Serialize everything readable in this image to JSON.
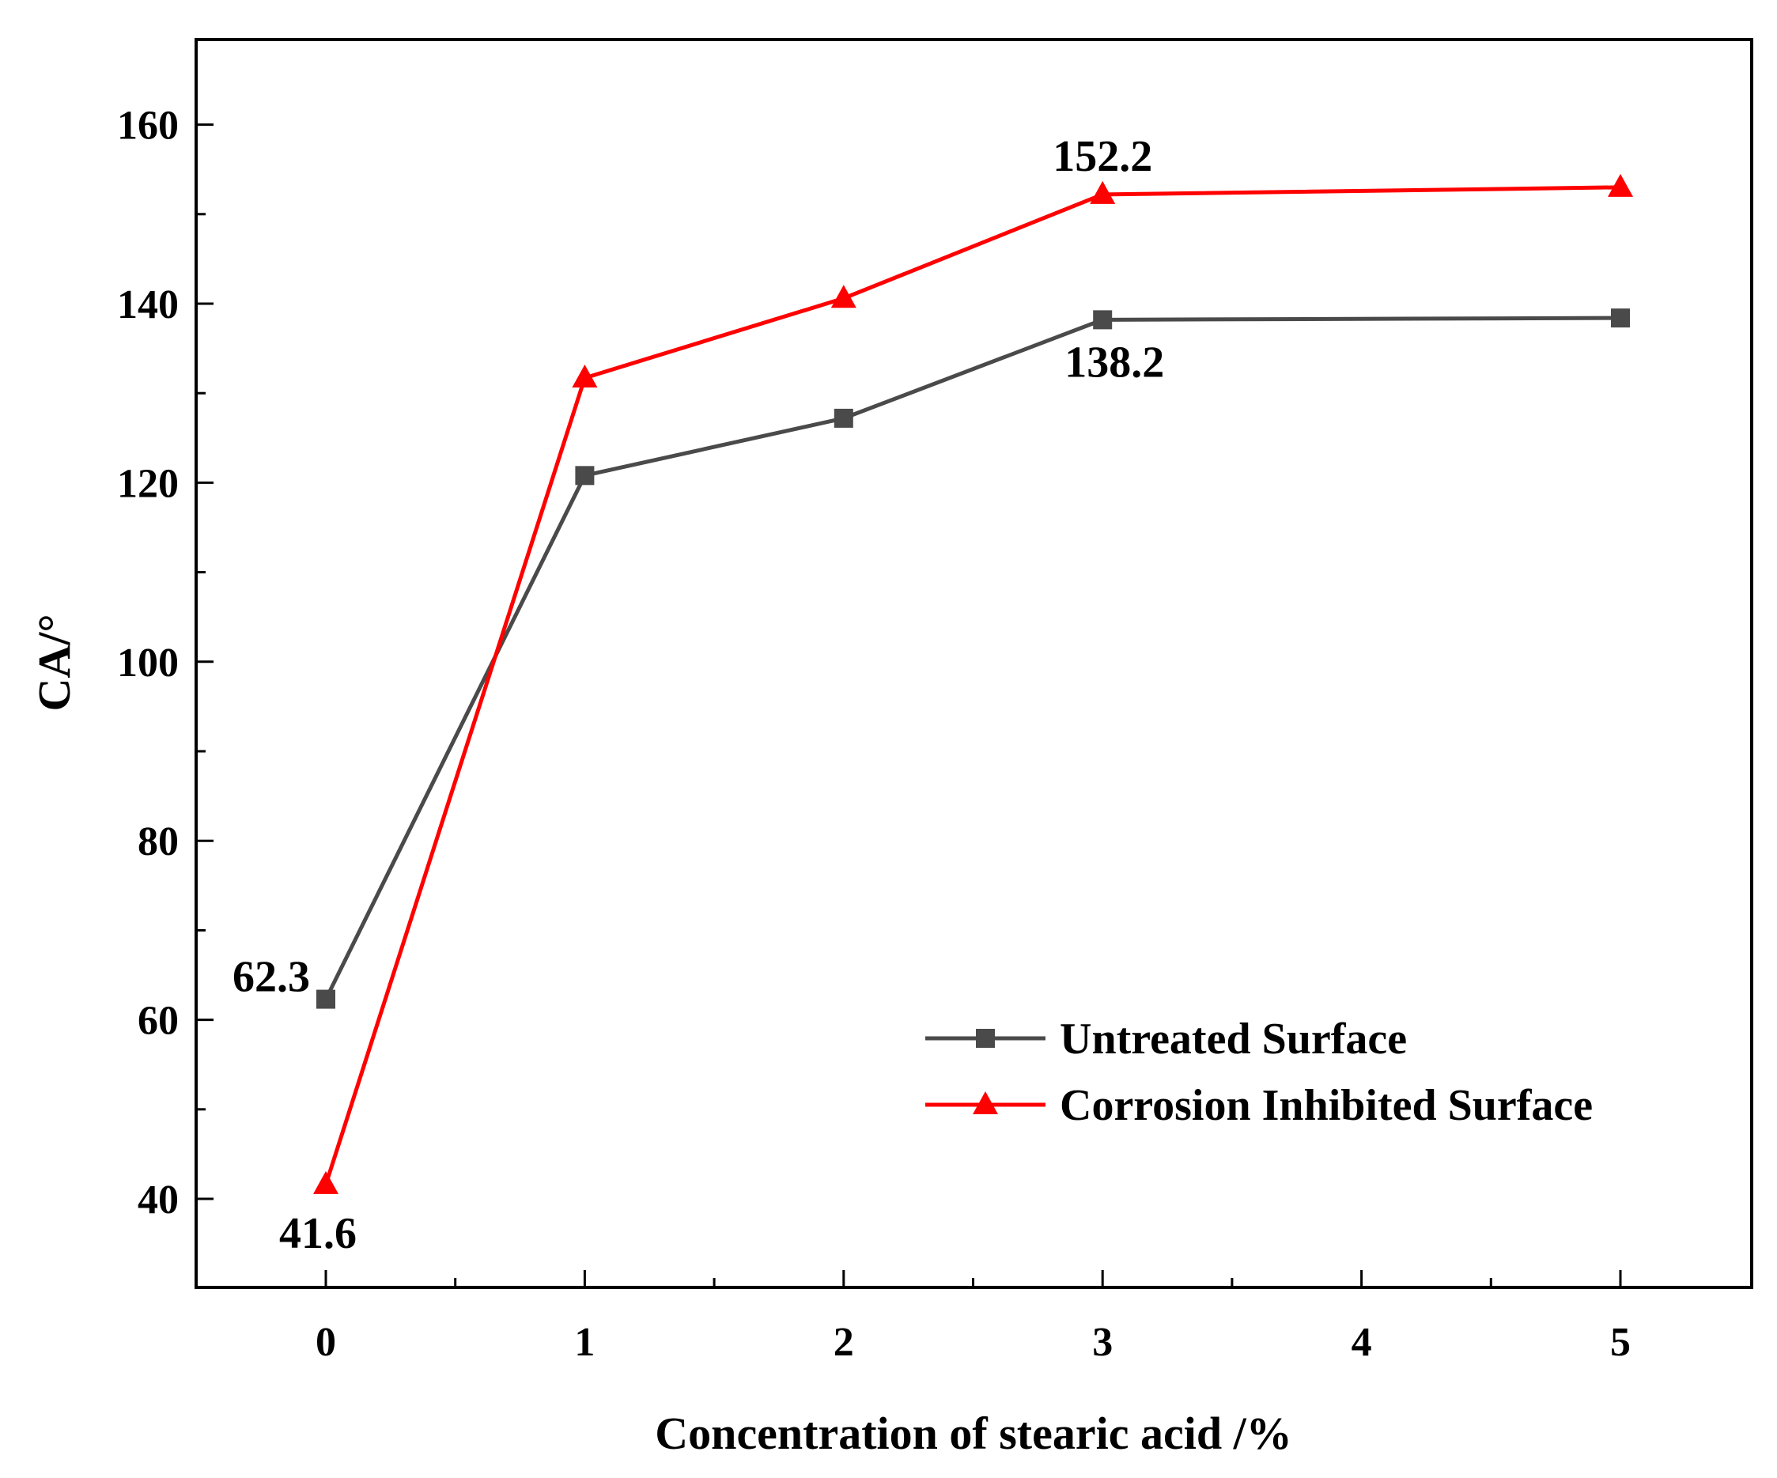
{
  "chart_data": {
    "type": "line",
    "title": "",
    "xlabel": "Concentration of stearic acid /%",
    "ylabel": "CA/°",
    "ylim": [
      30,
      170
    ],
    "y_ticks": [
      40,
      60,
      80,
      100,
      120,
      140,
      160
    ],
    "x_ticks": [
      {
        "value": 0,
        "label": "0"
      },
      {
        "value": 1,
        "label": "1"
      },
      {
        "value": 2,
        "label": "2"
      },
      {
        "value": 3,
        "label": "3"
      },
      {
        "value": 4,
        "label": "4"
      },
      {
        "value": 5,
        "label": "5"
      }
    ],
    "series": [
      {
        "name": "Untreated Surface",
        "color": "#4a4a4a",
        "marker": "square",
        "x": [
          0,
          1,
          2,
          3,
          5
        ],
        "values": [
          62.3,
          120.8,
          127.2,
          138.2,
          138.4
        ]
      },
      {
        "name": "Corrosion Inhibited Surface",
        "color": "#ff0000",
        "marker": "triangle",
        "x": [
          0,
          1,
          2,
          3,
          5
        ],
        "values": [
          41.6,
          131.7,
          140.6,
          152.2,
          153.0
        ]
      }
    ],
    "annotations": [
      {
        "text": "62.3",
        "series": 0,
        "point": 0,
        "placement": "upper-left"
      },
      {
        "text": "41.6",
        "series": 1,
        "point": 0,
        "placement": "below"
      },
      {
        "text": "152.2",
        "series": 1,
        "point": 3,
        "placement": "above"
      },
      {
        "text": "138.2",
        "series": 0,
        "point": 3,
        "placement": "below"
      }
    ],
    "legend_position": "bottom-right"
  }
}
